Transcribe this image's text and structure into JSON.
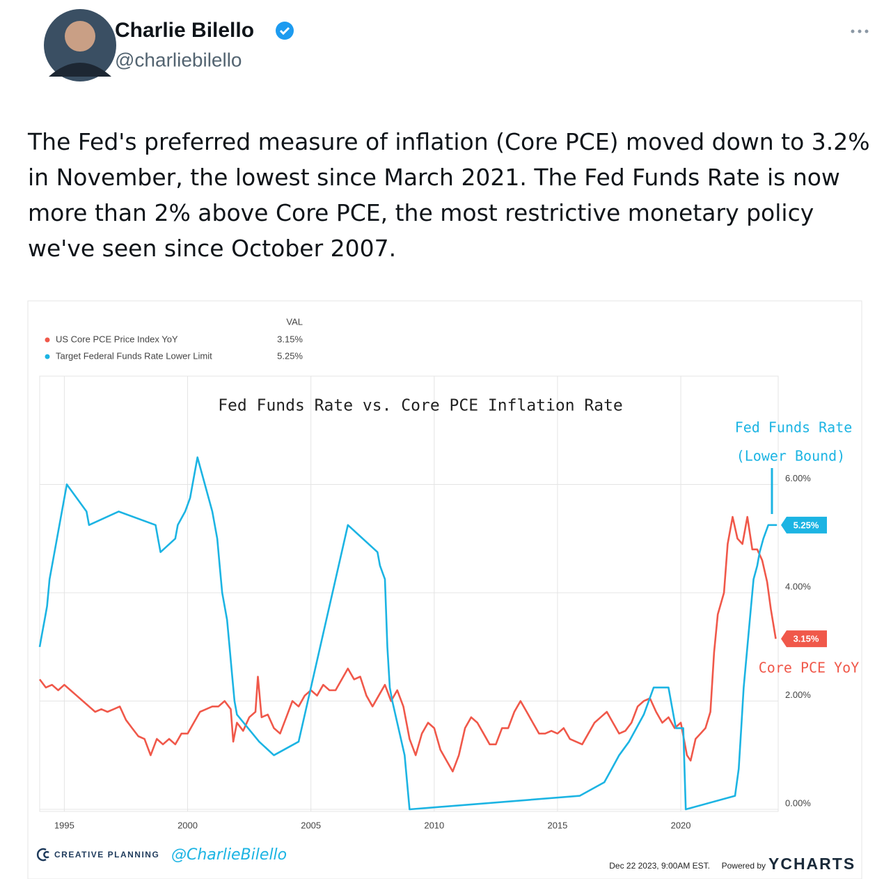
{
  "tweet": {
    "name": "Charlie Bilello",
    "handle": "@charliebilello",
    "text": "The Fed's preferred measure of inflation (Core PCE) moved down to 3.2% in November, the lowest since March 2021. The Fed Funds Rate is now more than 2% above Core PCE, the most restrictive monetary policy we've seen since October 2007."
  },
  "chart_data": {
    "type": "line",
    "title": "Fed Funds Rate vs. Core PCE Inflation Rate",
    "legend_header": "VAL",
    "annotations": [
      "Fed Funds Rate",
      "(Lower Bound)",
      "Core PCE YoY"
    ],
    "footer": {
      "brand": "CREATIVE PLANNING",
      "author": "@CharlieBilello",
      "timestamp": "Dec 22 2023, 9:00AM EST.",
      "powered": "Powered by",
      "source": "YCHARTS"
    },
    "xlim": [
      1994,
      2023.95
    ],
    "xticks": [
      1995,
      2000,
      2005,
      2010,
      2015,
      2020
    ],
    "ylim": [
      0,
      8
    ],
    "yticks": [
      {
        "value": 0,
        "label": "0.00%"
      },
      {
        "value": 2,
        "label": "2.00%"
      },
      {
        "value": 4,
        "label": "4.00%"
      },
      {
        "value": 6,
        "label": "6.00%"
      }
    ],
    "grid": true,
    "series": [
      {
        "name": "US Core PCE Price Index YoY",
        "color": "#f0584a",
        "last_value_label": "3.15%",
        "x": [
          1994.0,
          1994.25,
          1994.5,
          1994.75,
          1995.0,
          1995.25,
          1995.5,
          1995.75,
          1996.0,
          1996.25,
          1996.5,
          1996.75,
          1997.0,
          1997.25,
          1997.5,
          1997.75,
          1998.0,
          1998.25,
          1998.5,
          1998.75,
          1999.0,
          1999.25,
          1999.5,
          1999.75,
          2000.0,
          2000.25,
          2000.5,
          2000.75,
          2001.0,
          2001.25,
          2001.5,
          2001.75,
          2001.85,
          2002.0,
          2002.25,
          2002.5,
          2002.75,
          2002.85,
          2003.0,
          2003.25,
          2003.5,
          2003.75,
          2004.0,
          2004.25,
          2004.5,
          2004.75,
          2005.0,
          2005.25,
          2005.5,
          2005.75,
          2006.0,
          2006.25,
          2006.5,
          2006.75,
          2007.0,
          2007.25,
          2007.5,
          2007.75,
          2008.0,
          2008.25,
          2008.5,
          2008.75,
          2009.0,
          2009.25,
          2009.5,
          2009.75,
          2010.0,
          2010.25,
          2010.5,
          2010.75,
          2011.0,
          2011.25,
          2011.5,
          2011.75,
          2012.0,
          2012.25,
          2012.5,
          2012.75,
          2013.0,
          2013.25,
          2013.5,
          2013.75,
          2014.0,
          2014.25,
          2014.5,
          2014.75,
          2015.0,
          2015.25,
          2015.5,
          2015.75,
          2016.0,
          2016.25,
          2016.5,
          2016.75,
          2017.0,
          2017.25,
          2017.5,
          2017.75,
          2018.0,
          2018.25,
          2018.5,
          2018.75,
          2019.0,
          2019.25,
          2019.5,
          2019.75,
          2020.0,
          2020.25,
          2020.4,
          2020.6,
          2020.8,
          2021.0,
          2021.2,
          2021.35,
          2021.5,
          2021.75,
          2021.9,
          2022.1,
          2022.3,
          2022.5,
          2022.7,
          2022.9,
          2023.1,
          2023.3,
          2023.5,
          2023.65,
          2023.85
        ],
        "values": [
          2.4,
          2.25,
          2.3,
          2.2,
          2.3,
          2.2,
          2.1,
          2.0,
          1.9,
          1.8,
          1.85,
          1.8,
          1.85,
          1.9,
          1.65,
          1.5,
          1.35,
          1.3,
          1.0,
          1.3,
          1.2,
          1.3,
          1.2,
          1.4,
          1.4,
          1.6,
          1.8,
          1.85,
          1.9,
          1.9,
          2.0,
          1.85,
          1.25,
          1.6,
          1.45,
          1.7,
          1.8,
          2.45,
          1.7,
          1.75,
          1.5,
          1.4,
          1.7,
          2.0,
          1.9,
          2.1,
          2.2,
          2.1,
          2.3,
          2.2,
          2.2,
          2.4,
          2.6,
          2.4,
          2.45,
          2.1,
          1.9,
          2.1,
          2.3,
          2.0,
          2.2,
          1.9,
          1.3,
          1.0,
          1.4,
          1.6,
          1.5,
          1.1,
          0.9,
          0.7,
          1.0,
          1.5,
          1.7,
          1.6,
          1.4,
          1.2,
          1.2,
          1.5,
          1.5,
          1.8,
          2.0,
          1.8,
          1.6,
          1.4,
          1.4,
          1.45,
          1.4,
          1.5,
          1.3,
          1.25,
          1.2,
          1.4,
          1.6,
          1.7,
          1.8,
          1.6,
          1.4,
          1.45,
          1.6,
          1.9,
          2.0,
          2.05,
          1.8,
          1.6,
          1.7,
          1.5,
          1.6,
          1.0,
          0.9,
          1.3,
          1.4,
          1.5,
          1.8,
          2.9,
          3.6,
          4.0,
          4.9,
          5.4,
          5.0,
          4.9,
          5.4,
          4.8,
          4.8,
          4.6,
          4.2,
          3.7,
          3.15
        ]
      },
      {
        "name": "Target Federal Funds Rate Lower Limit",
        "color": "#1cb4e3",
        "last_value_label": "5.25%",
        "x": [
          1994.0,
          1994.1,
          1994.2,
          1994.3,
          1994.4,
          1994.6,
          1994.9,
          1995.1,
          1995.5,
          1995.9,
          1996.0,
          1997.2,
          1998.7,
          1998.8,
          1998.9,
          1999.5,
          1999.6,
          1999.9,
          2000.1,
          2000.2,
          2000.4,
          2001.0,
          2001.2,
          2001.3,
          2001.4,
          2001.5,
          2001.6,
          2001.7,
          2001.8,
          2001.9,
          2002.0,
          2002.9,
          2003.5,
          2004.5,
          2005.0,
          2005.5,
          2006.0,
          2006.5,
          2007.7,
          2007.8,
          2008.0,
          2008.1,
          2008.2,
          2008.3,
          2008.8,
          2009.0,
          2015.9,
          2016.9,
          2017.2,
          2017.5,
          2017.9,
          2018.2,
          2018.5,
          2018.7,
          2018.9,
          2019.5,
          2019.6,
          2019.7,
          2019.8,
          2020.1,
          2020.2,
          2022.2,
          2022.35,
          2022.45,
          2022.55,
          2022.7,
          2022.85,
          2022.95,
          2023.1,
          2023.2,
          2023.35,
          2023.55,
          2023.9
        ],
        "values": [
          3.0,
          3.25,
          3.5,
          3.75,
          4.25,
          4.75,
          5.5,
          6.0,
          5.75,
          5.5,
          5.25,
          5.5,
          5.25,
          5.0,
          4.75,
          5.0,
          5.25,
          5.5,
          5.75,
          6.0,
          6.5,
          5.5,
          5.0,
          4.5,
          4.0,
          3.75,
          3.5,
          3.0,
          2.5,
          2.0,
          1.75,
          1.25,
          1.0,
          1.25,
          2.25,
          3.25,
          4.25,
          5.25,
          4.75,
          4.5,
          4.25,
          3.0,
          2.25,
          2.0,
          1.0,
          0,
          0.25,
          0.5,
          0.75,
          1.0,
          1.25,
          1.5,
          1.75,
          2.0,
          2.25,
          2.25,
          2.0,
          1.75,
          1.5,
          1.5,
          0,
          0.25,
          0.75,
          1.5,
          2.25,
          3.0,
          3.75,
          4.25,
          4.5,
          4.75,
          5.0,
          5.25,
          5.25
        ]
      }
    ]
  }
}
